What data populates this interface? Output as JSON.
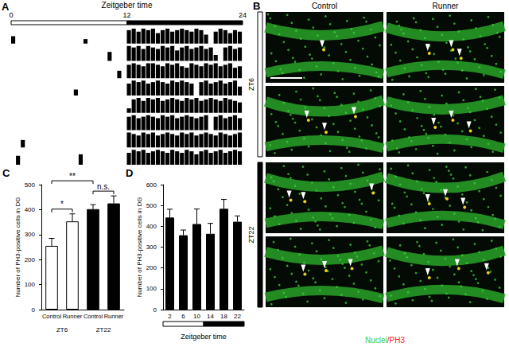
{
  "panel_labels": [
    "A",
    "B",
    "C",
    "D"
  ],
  "chart_data": [
    {
      "type": "actogram",
      "xlabel": "Zeitgeber time",
      "xlim": [
        0,
        24
      ],
      "xticks": [
        0,
        12,
        24
      ],
      "tick_labels": "x",
      "color": "#000000",
      "light_dark": [
        {
          "start": 0,
          "end": 12,
          "color": "#ffffff"
        },
        {
          "start": 12,
          "end": 24,
          "color": "#000000"
        }
      ],
      "activity": [
        [
          0.5,
          0,
          0,
          0,
          0,
          0,
          0,
          0,
          0,
          0,
          0,
          0,
          0,
          0,
          0,
          0.3,
          0,
          0,
          0,
          0,
          0,
          0,
          0,
          0,
          0.9,
          1,
          0.8,
          1,
          0.9,
          1,
          0.7,
          0.9,
          1,
          0.8,
          0.9,
          1,
          0.9,
          0.8,
          1,
          0.9,
          0.6,
          0,
          0.8,
          1,
          0.9,
          0.7,
          0.9,
          0.8
        ],
        [
          0,
          0,
          0,
          0,
          0,
          0,
          0,
          0,
          0,
          0,
          0,
          0,
          0,
          0,
          0,
          0,
          0,
          0,
          0,
          0,
          0.6,
          0,
          0,
          0,
          1,
          0.9,
          1,
          0.8,
          1,
          0.9,
          0.8,
          1,
          0.9,
          1,
          0.7,
          0.9,
          1,
          0.8,
          0.9,
          1,
          0.8,
          0.9,
          0.4,
          0,
          0.9,
          1,
          0.8,
          0.9
        ],
        [
          0,
          0,
          0,
          0,
          0,
          0,
          0,
          0,
          0,
          0,
          0,
          0,
          0,
          0,
          0,
          0,
          0,
          0,
          0,
          0,
          0,
          0,
          0.5,
          0,
          0.9,
          1,
          0.9,
          0.8,
          1,
          1,
          0.9,
          0.8,
          1,
          0.9,
          1,
          0.8,
          0.7,
          1,
          0.9,
          0.8,
          1,
          0.9,
          1,
          0.8,
          0.9,
          1,
          0.7,
          0.8
        ],
        [
          0,
          0,
          0,
          0,
          0,
          0,
          0,
          0,
          0,
          0,
          0,
          0,
          0,
          0.4,
          0,
          0,
          0,
          0,
          0,
          0,
          0,
          0,
          0,
          0,
          0.8,
          1,
          0.9,
          1,
          0.8,
          0.9,
          1,
          0.9,
          0.8,
          1,
          0.9,
          1,
          0.9,
          0.8,
          0,
          0.9,
          1,
          0.8,
          0.9,
          1,
          0.8,
          0.9,
          1,
          0.6
        ],
        [
          0,
          0,
          0,
          0,
          0,
          0,
          0,
          0,
          0,
          0,
          0,
          0,
          0,
          0,
          0,
          0,
          0,
          0,
          0,
          0,
          0,
          0,
          0,
          0,
          0.3,
          0.9,
          1,
          0.8,
          1,
          0.9,
          1,
          0.8,
          0.9,
          1,
          0.9,
          0.8,
          1,
          0.9,
          1,
          0.8,
          0.9,
          1,
          0.9,
          0.8,
          1,
          0.9,
          0.8,
          0.7
        ],
        [
          0,
          0,
          0,
          0,
          0,
          0,
          0,
          0,
          0,
          0,
          0,
          0,
          0,
          0,
          0,
          0,
          0,
          0,
          0,
          0,
          0,
          0,
          0,
          0,
          0.9,
          1,
          0.8,
          0.9,
          1,
          0.9,
          0.8,
          1,
          0.9,
          1,
          0.8,
          0.9,
          1,
          0.9,
          0.8,
          0.9,
          1,
          0,
          0.9,
          1,
          0.8,
          0.9,
          1,
          0.8
        ],
        [
          0,
          0,
          0.5,
          0,
          0,
          0,
          0,
          0,
          0,
          0,
          0,
          0,
          0,
          0,
          0,
          0,
          0,
          0,
          0,
          0,
          0,
          0,
          0,
          0,
          1,
          0.9,
          0.8,
          1,
          0.9,
          1,
          0.8,
          0.9,
          1,
          0.9,
          0.8,
          1,
          0.9,
          1,
          0.8,
          0.9,
          1,
          0.9,
          0.8,
          1,
          0.9,
          0.8,
          0.9,
          1
        ],
        [
          0,
          0.6,
          0,
          0,
          0,
          0,
          0,
          0,
          0,
          0,
          0,
          0,
          0,
          0,
          0.7,
          0,
          0,
          0,
          0,
          0,
          0,
          0,
          0,
          0,
          0.8,
          1,
          0.9,
          1,
          0.8,
          0.9,
          1,
          0.9,
          0.8,
          1,
          0.9,
          0.8,
          1,
          0.9,
          0.7,
          0.9,
          1,
          0.8,
          0.9,
          1,
          0.8,
          0.9,
          1,
          0.9
        ]
      ]
    },
    {
      "type": "bar",
      "ylabel": "Number of PH3-positive cells in DG",
      "categories": [
        "Control",
        "Runner",
        "Control",
        "Runner"
      ],
      "groups": [
        "ZT6",
        "ZT6",
        "ZT22",
        "ZT22"
      ],
      "values": [
        255,
        353,
        402,
        425
      ],
      "errors": [
        30,
        30,
        18,
        30
      ],
      "colors": [
        "#ffffff",
        "#ffffff",
        "#000000",
        "#000000"
      ],
      "ylim": [
        0,
        500
      ],
      "yticks": [
        0,
        100,
        200,
        300,
        400,
        500
      ],
      "annotations": [
        {
          "text": "*",
          "from": 0,
          "to": 1
        },
        {
          "text": "**",
          "from": 0,
          "to": 2
        },
        {
          "text": "n.s.",
          "from": 2,
          "to": 3
        }
      ]
    },
    {
      "type": "bar",
      "xlabel": "Zeitgeber time",
      "ylabel": "Number of PH3-positive cells in DG",
      "x": [
        2,
        6,
        10,
        14,
        18,
        22
      ],
      "values": [
        442,
        357,
        411,
        364,
        484,
        422
      ],
      "errors": [
        40,
        25,
        72,
        50,
        45,
        28
      ],
      "color": "#000000",
      "xlim": [
        0,
        24
      ],
      "xticks": [
        2,
        6,
        10,
        14,
        18,
        22
      ],
      "ylim": [
        0,
        600
      ],
      "yticks": [
        0,
        100,
        200,
        300,
        400,
        500,
        600
      ],
      "light_dark": [
        {
          "start": 0,
          "end": 12,
          "color": "#ffffff"
        },
        {
          "start": 12,
          "end": 24,
          "color": "#000000"
        }
      ]
    }
  ],
  "images": {
    "columns": [
      "Control",
      "Runner"
    ],
    "groups": [
      {
        "label": "ZT6",
        "color": "#ffffff"
      },
      {
        "label": "ZT22",
        "color": "#000000"
      }
    ],
    "legend": [
      {
        "text": "Nuclei",
        "color": "#33cc33"
      },
      {
        "text": "/PH3",
        "color": "#ff2020"
      }
    ]
  }
}
